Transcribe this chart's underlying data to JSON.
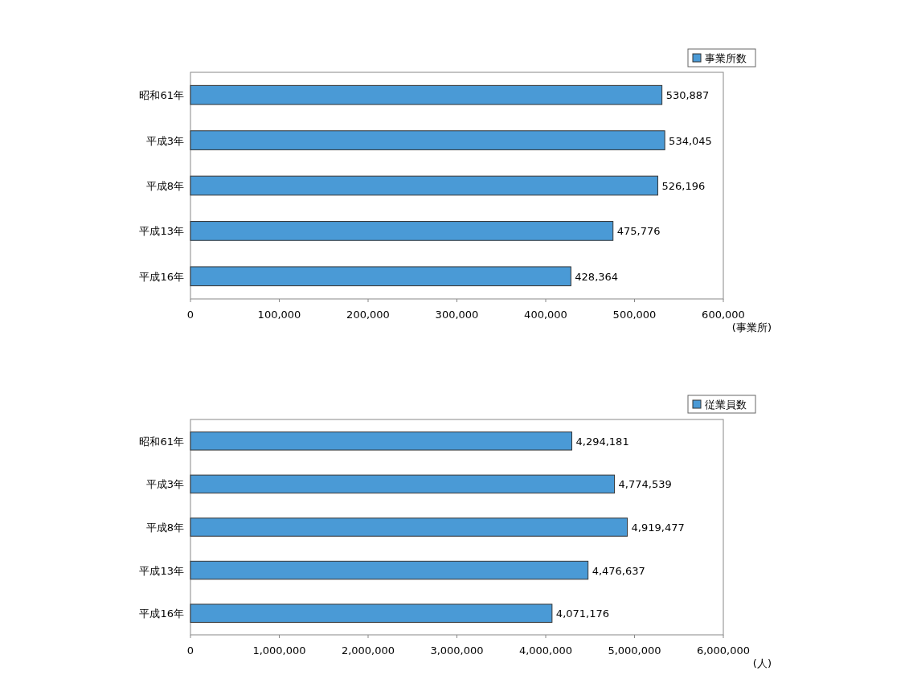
{
  "chart_data": [
    {
      "type": "bar",
      "orientation": "horizontal",
      "categories": [
        "昭和61年",
        "平成3年",
        "平成8年",
        "平成13年",
        "平成16年"
      ],
      "series": [
        {
          "name": "事業所数",
          "color": "#4a9ad6",
          "values": [
            530887,
            534045,
            526196,
            475776,
            428364
          ],
          "value_labels": [
            "530,887",
            "534,045",
            "526,196",
            "475,776",
            "428,364"
          ]
        }
      ],
      "xlim": [
        0,
        600000
      ],
      "xticks": [
        0,
        {
          "value": 100000,
          "label": "100,000"
        },
        {
          "value": 200000,
          "label": "200,000"
        },
        {
          "value": 300000,
          "label": "300,000"
        },
        {
          "value": 400000,
          "label": "400,000"
        },
        {
          "value": 500000,
          "label": "500,000"
        },
        {
          "value": 600000,
          "label": "600,000"
        }
      ],
      "xlabel": "(事業所)",
      "legend": "top right",
      "grid": false
    },
    {
      "type": "bar",
      "orientation": "horizontal",
      "categories": [
        "昭和61年",
        "平成3年",
        "平成8年",
        "平成13年",
        "平成16年"
      ],
      "series": [
        {
          "name": "従業員数",
          "color": "#4a9ad6",
          "values": [
            4294181,
            4774539,
            4919477,
            4476637,
            4071176
          ],
          "value_labels": [
            "4,294,181",
            "4,774,539",
            "4,919,477",
            "4,476,637",
            "4,071,176"
          ]
        }
      ],
      "xlim": [
        0,
        6000000
      ],
      "xticks": [
        0,
        {
          "value": 1000000,
          "label": "1,000,000"
        },
        {
          "value": 2000000,
          "label": "2,000,000"
        },
        {
          "value": 3000000,
          "label": "3,000,000"
        },
        {
          "value": 4000000,
          "label": "4,000,000"
        },
        {
          "value": 5000000,
          "label": "5,000,000"
        },
        {
          "value": 6000000,
          "label": "6,000,000"
        }
      ],
      "xlabel": "(人)",
      "legend": "top right",
      "grid": false
    }
  ]
}
